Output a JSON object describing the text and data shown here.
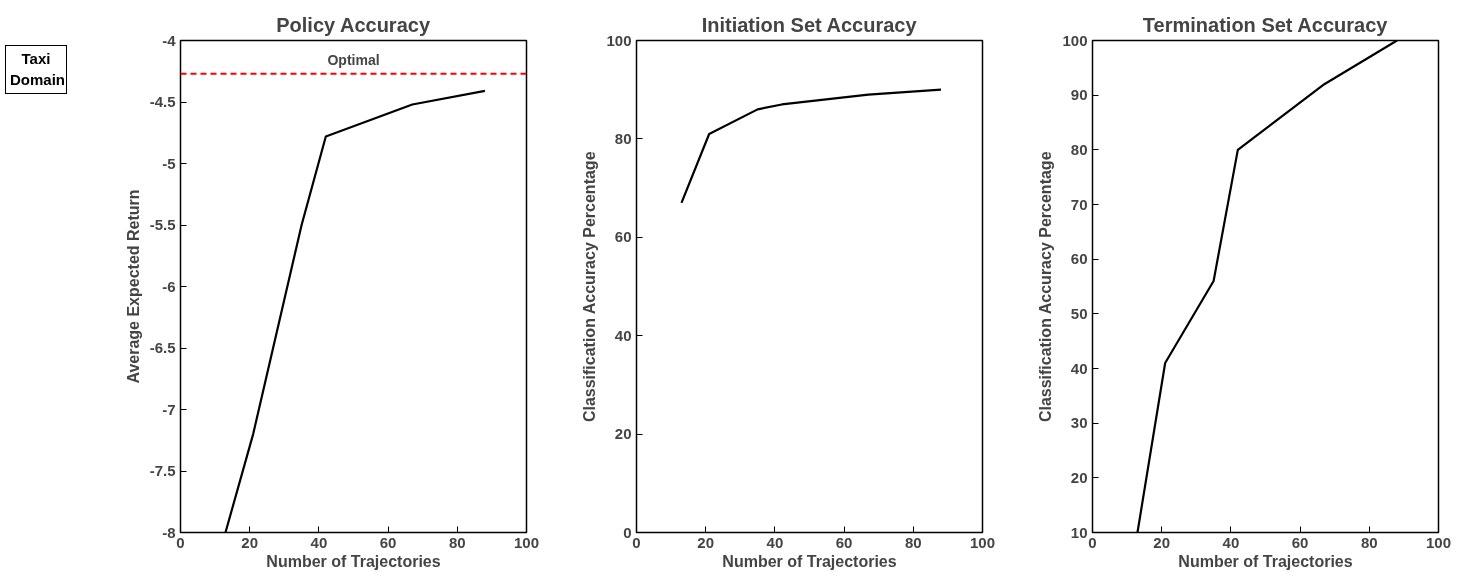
{
  "chart_data": [
    {
      "type": "line",
      "title": "Policy Accuracy",
      "xlabel": "Number of Trajectories",
      "ylabel": "Average Expected Return",
      "x": [
        13,
        21,
        35,
        42,
        67,
        88
      ],
      "series": [
        {
          "color": "#000000",
          "values": [
            -8,
            -7.2,
            -5.5,
            -4.78,
            -4.52,
            -4.41
          ]
        }
      ],
      "xlim": [
        0,
        100
      ],
      "xticks": [
        0,
        20,
        40,
        60,
        80,
        100
      ],
      "ylim": [
        -8,
        -4
      ],
      "yticks": [
        -8,
        -7.5,
        -7,
        -6.5,
        -6,
        -5.5,
        -5,
        -4.5,
        -4
      ],
      "ref_lines": [
        {
          "axis": "y",
          "value": -4.27,
          "label": "Optimal",
          "color": "#ff0000",
          "line_style": "dashed"
        }
      ],
      "annotations": [
        "Taxi Domain"
      ],
      "grid": false,
      "line_style": "solid"
    },
    {
      "type": "line",
      "title": "Initiation Set Accuracy",
      "xlabel": "Number of Trajectories",
      "ylabel": "Classification Accuracy Percentage",
      "x": [
        13,
        21,
        35,
        42,
        67,
        88
      ],
      "series": [
        {
          "color": "#000000",
          "values": [
            67,
            81,
            86,
            87,
            89,
            90
          ]
        }
      ],
      "xlim": [
        0,
        100
      ],
      "xticks": [
        0,
        20,
        40,
        60,
        80,
        100
      ],
      "ylim": [
        0,
        100
      ],
      "yticks": [
        0,
        20,
        40,
        60,
        80,
        100
      ],
      "grid": false,
      "line_style": "solid"
    },
    {
      "type": "line",
      "title": "Termination Set Accuracy",
      "xlabel": "Number of Trajectories",
      "ylabel": "Classification Accuracy Percentage",
      "x": [
        13,
        21,
        35,
        42,
        67,
        88
      ],
      "series": [
        {
          "color": "#000000",
          "values": [
            10,
            41,
            56,
            80,
            92,
            100
          ]
        }
      ],
      "xlim": [
        0,
        100
      ],
      "xticks": [
        0,
        20,
        40,
        60,
        80,
        100
      ],
      "ylim": [
        10,
        100
      ],
      "yticks": [
        10,
        20,
        30,
        40,
        50,
        60,
        70,
        80,
        90,
        100
      ],
      "grid": false,
      "line_style": "solid"
    }
  ]
}
